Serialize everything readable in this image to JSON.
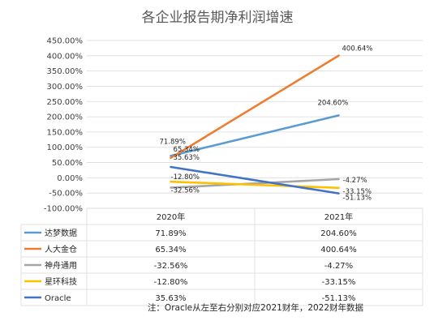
{
  "chart_data": {
    "type": "line",
    "title": "各企业报告期净利润增速",
    "categories": [
      "2020年",
      "2021年"
    ],
    "series": [
      {
        "name": "达梦数据",
        "values": [
          71.89,
          204.6
        ],
        "labels": [
          "71.89%",
          "204.60%"
        ],
        "color": "#5b9bd5"
      },
      {
        "name": "人大金仓",
        "values": [
          65.34,
          400.64
        ],
        "labels": [
          "65.34%",
          "400.64%"
        ],
        "color": "#ed7d31"
      },
      {
        "name": "神舟通用",
        "values": [
          -32.56,
          -4.27
        ],
        "labels": [
          "-32.56%",
          "-4.27%"
        ],
        "color": "#a5a5a5"
      },
      {
        "name": "星环科技",
        "values": [
          -12.8,
          -33.15
        ],
        "labels": [
          "-12.80%",
          "-33.15%"
        ],
        "color": "#ffc000"
      },
      {
        "name": "Oracle",
        "values": [
          35.63,
          -51.13
        ],
        "labels": [
          "35.63%",
          "-51.13%"
        ],
        "color": "#4472c4"
      }
    ],
    "yticks": [
      "-100.00%",
      "-50.00%",
      "0.00%",
      "50.00%",
      "100.00%",
      "150.00%",
      "200.00%",
      "250.00%",
      "300.00%",
      "350.00%",
      "400.00%",
      "450.00%"
    ],
    "ylim": [
      -100,
      450
    ],
    "grid": true,
    "legend": "data-table"
  },
  "note": "注：Oracle从左至右分别对应2021财年，2022财年数据"
}
